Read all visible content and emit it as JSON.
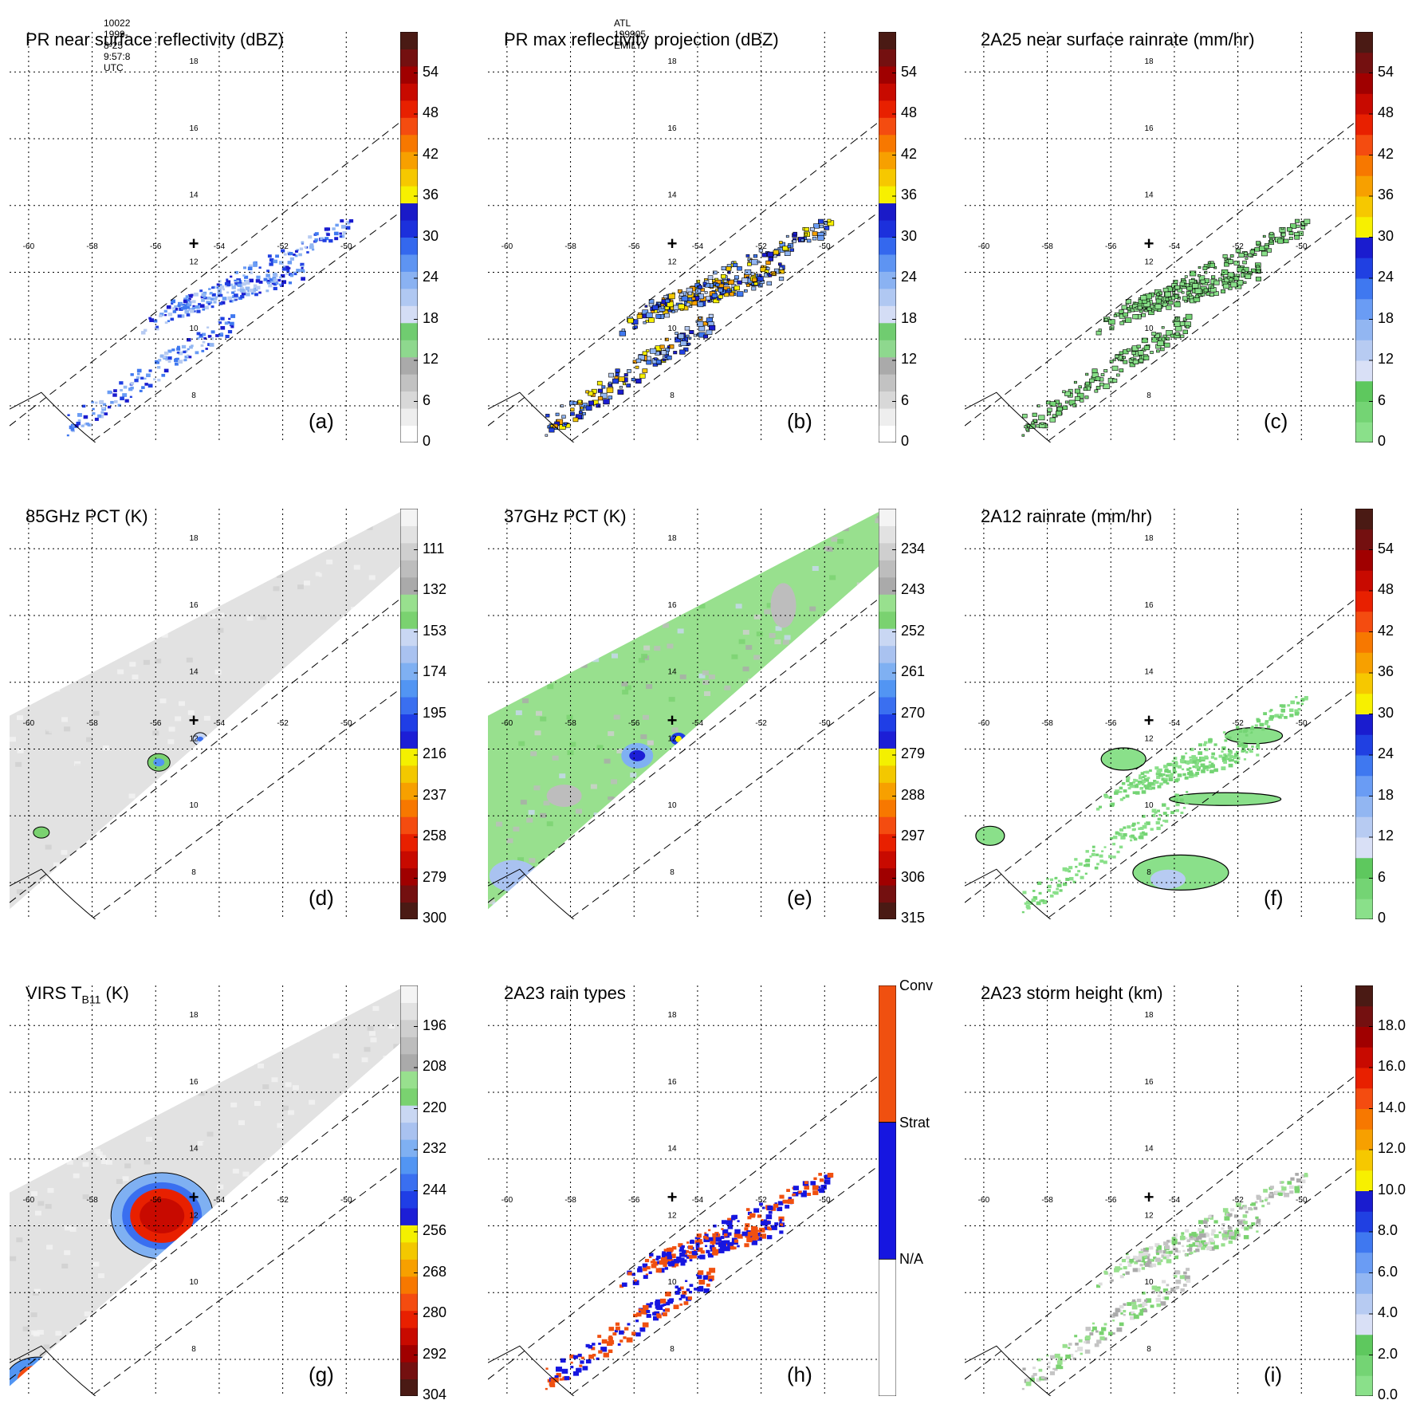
{
  "header": {
    "left": "10022 1999-8-25 9:57:8 UTC",
    "center": "ATL 199905 EMILY"
  },
  "map": {
    "lon_ticks": [
      "-60",
      "-58",
      "-56",
      "-54",
      "-52",
      "-50"
    ],
    "lat_ticks": [
      "18",
      "16",
      "14",
      "12",
      "10",
      "8"
    ],
    "storm_marker": "+"
  },
  "colors": {
    "sat": [
      "#f4f4f4",
      "#e2e2e2",
      "#cfcfcf",
      "#bdbdbd",
      "#aaaaaa",
      "#98e08e",
      "#7ad270",
      "#c9d7f3",
      "#a9c2f0",
      "#7fb0f2",
      "#5295f3",
      "#3a6ff0",
      "#1f3ee6",
      "#1c1ed6",
      "#f4f000",
      "#f3c800",
      "#f7a000",
      "#f77800",
      "#f44c10",
      "#e82000",
      "#c80a00",
      "#a00000",
      "#741010",
      "#4a1a14"
    ],
    "rain": [
      "#8ae08a",
      "#74d474",
      "#5ec85e",
      "#d9e0f6",
      "#b7cbf2",
      "#92b6f2",
      "#6a9cf4",
      "#3f78f0",
      "#2040e2",
      "#1a1ccf",
      "#f7f000",
      "#f6c800",
      "#f7a000",
      "#f77800",
      "#f44c10",
      "#e82000",
      "#c80a00",
      "#a00000",
      "#741010",
      "#4a1a14"
    ],
    "raintype": [
      "#ffffff",
      "#1616e0",
      "#f05010"
    ]
  },
  "chart_data": [
    {
      "id": "a",
      "type": "map",
      "title": "PR near surface reflectivity (dBZ)",
      "label": "(a)",
      "colorbar_ticks": [
        "54",
        "48",
        "42",
        "36",
        "30",
        "24",
        "18",
        "12",
        "6",
        "0"
      ],
      "colorbar_range": [
        0,
        60
      ]
    },
    {
      "id": "b",
      "type": "map",
      "title": "PR max reflectivity projection (dBZ)",
      "label": "(b)",
      "colorbar_ticks": [
        "54",
        "48",
        "42",
        "36",
        "30",
        "24",
        "18",
        "12",
        "6",
        "0"
      ],
      "colorbar_range": [
        0,
        60
      ]
    },
    {
      "id": "c",
      "type": "map",
      "title": "2A25 near surface rainrate (mm/hr)",
      "label": "(c)",
      "colorbar_ticks": [
        "54",
        "48",
        "42",
        "36",
        "30",
        "24",
        "18",
        "12",
        "6",
        "0"
      ],
      "colorbar_range": [
        0,
        60
      ]
    },
    {
      "id": "d",
      "type": "map",
      "title": "85GHz PCT (K)",
      "label": "(d)",
      "colorbar_ticks": [
        "111",
        "132",
        "153",
        "174",
        "195",
        "216",
        "237",
        "258",
        "279",
        "300"
      ],
      "colorbar_range": [
        90,
        300
      ]
    },
    {
      "id": "e",
      "type": "map",
      "title": "37GHz PCT (K)",
      "label": "(e)",
      "colorbar_ticks": [
        "234",
        "243",
        "252",
        "261",
        "270",
        "279",
        "288",
        "297",
        "306",
        "315"
      ],
      "colorbar_range": [
        225,
        315
      ]
    },
    {
      "id": "f",
      "type": "map",
      "title": "2A12 rainrate (mm/hr)",
      "label": "(f)",
      "colorbar_ticks": [
        "54",
        "48",
        "42",
        "36",
        "30",
        "24",
        "18",
        "12",
        "6",
        "0"
      ],
      "colorbar_range": [
        0,
        60
      ]
    },
    {
      "id": "g",
      "type": "map",
      "title_main": "VIRS T",
      "title_sub": "B11",
      "title_end": " (K)",
      "label": "(g)",
      "colorbar_ticks": [
        "196",
        "208",
        "220",
        "232",
        "244",
        "256",
        "268",
        "280",
        "292",
        "304"
      ],
      "colorbar_range": [
        184,
        304
      ]
    },
    {
      "id": "h",
      "type": "map",
      "title": "2A23 rain types",
      "label": "(h)",
      "colorbar_ticks": [
        "Conv",
        "Strat",
        "N/A"
      ],
      "colorbar_categories": [
        "N/A",
        "Strat",
        "Conv"
      ]
    },
    {
      "id": "i",
      "type": "map",
      "title": "2A23 storm height (km)",
      "label": "(i)",
      "colorbar_ticks": [
        "18.0",
        "16.0",
        "14.0",
        "12.0",
        "10.0",
        "8.0",
        "6.0",
        "4.0",
        "2.0",
        "0.0"
      ],
      "colorbar_range": [
        0,
        20
      ]
    }
  ]
}
